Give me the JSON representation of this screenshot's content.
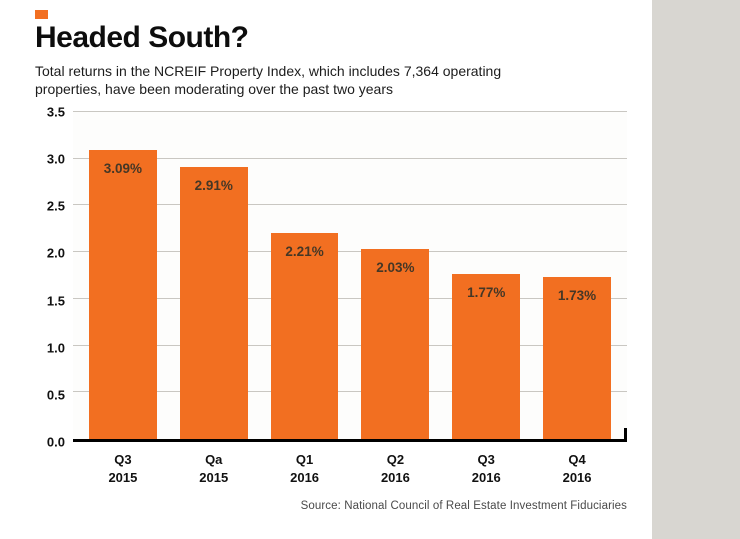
{
  "page": {
    "accent_color": "#f26f21"
  },
  "header": {
    "title": "Headed South?",
    "subtitle_line1": "Total returns in the NCREIF Property Index, which includes 7,364 operating",
    "subtitle_line2": "properties, have been moderating over the past two years"
  },
  "chart_data": {
    "type": "bar",
    "title": "Headed South?",
    "categories": [
      "Q3 2015",
      "Qa 2015",
      "Q1 2016",
      "Q2 2016",
      "Q3 2016",
      "Q4 2016"
    ],
    "values": [
      3.09,
      2.91,
      2.21,
      2.03,
      1.77,
      1.73
    ],
    "value_labels": [
      "3.09%",
      "2.91%",
      "2.21%",
      "2.03%",
      "1.77%",
      "1.73%"
    ],
    "xlabel": "",
    "ylabel": "",
    "ylim": [
      0,
      3.5
    ],
    "ytick_step": 0.5,
    "yticks": [
      "0.0",
      "0.5",
      "1.0",
      "1.5",
      "2.0",
      "2.5",
      "3.0",
      "3.5"
    ],
    "grid": true,
    "legend": "none",
    "bar_color": "#f26f21",
    "value_label_color": "#453726",
    "axis_color": "#000000",
    "gridline_color": "#c9c7c2"
  },
  "footer": {
    "source": "Source: National Council of Real Estate Investment Fiduciaries"
  }
}
